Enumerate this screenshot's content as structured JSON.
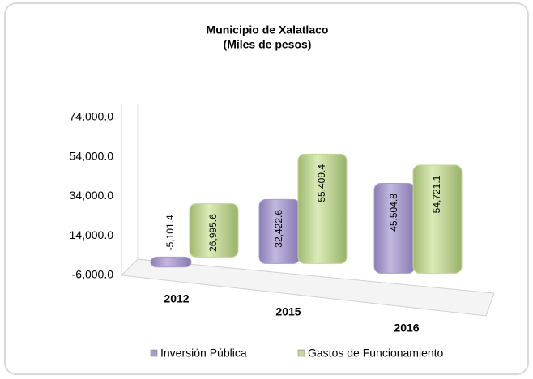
{
  "chart_data": {
    "type": "bar3d",
    "title": "Municipio de Xalatlaco",
    "subtitle": "(Miles de pesos)",
    "categories": [
      "2012",
      "2015",
      "2016"
    ],
    "series": [
      {
        "name": "Inversión Pública",
        "color": "#a99bcb",
        "values": [
          -5101.4,
          32422.6,
          45504.8
        ],
        "value_labels": [
          "-5,101.4",
          "32,422.6",
          "45,504.8"
        ]
      },
      {
        "name": "Gastos de Funcionamiento",
        "color": "#c3d79a",
        "values": [
          26995.6,
          55409.4,
          54721.1
        ],
        "value_labels": [
          "26,995.6",
          "55,409.4",
          "54,721.1"
        ]
      }
    ],
    "ylim": [
      -6000,
      74000
    ],
    "yticks": [
      {
        "value": -6000,
        "label": "-6,000.0"
      },
      {
        "value": 14000,
        "label": "14,000.0"
      },
      {
        "value": 34000,
        "label": "34,000.0"
      },
      {
        "value": 54000,
        "label": "54,000.0"
      },
      {
        "value": 74000,
        "label": "74,000.0"
      }
    ],
    "legend": "bottom"
  }
}
